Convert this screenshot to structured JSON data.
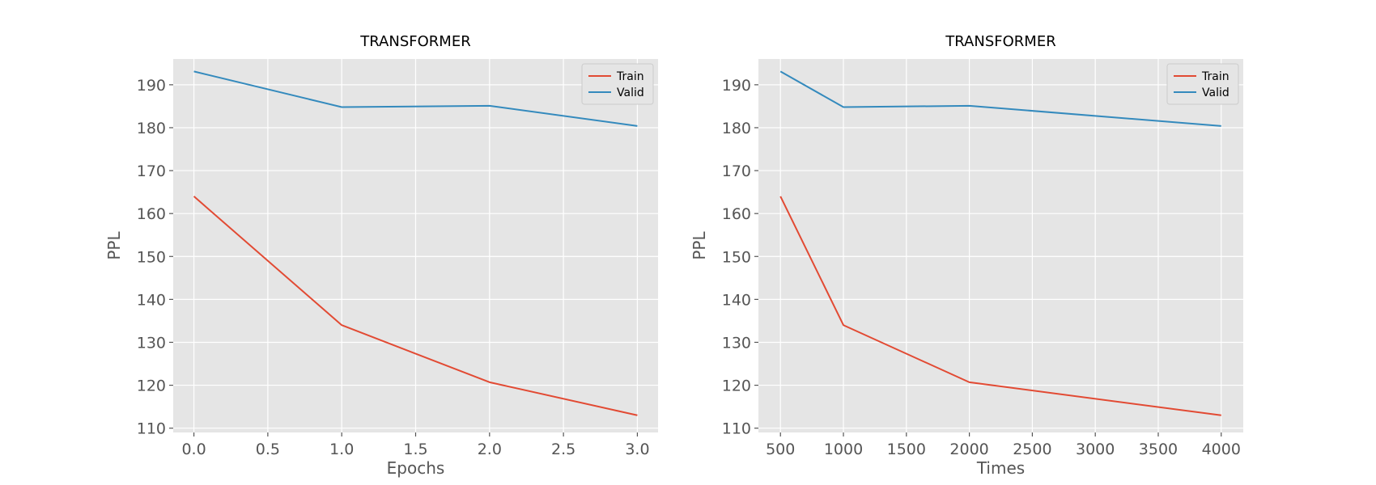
{
  "chart_data": [
    {
      "type": "line",
      "title": "TRANSFORMER",
      "xlabel": "Epochs",
      "ylabel": "PPL",
      "x": [
        0,
        1,
        2,
        3
      ],
      "xlim": [
        -0.14,
        3.14
      ],
      "ylim": [
        109,
        196
      ],
      "xticks": [
        0.0,
        0.5,
        1.0,
        1.5,
        2.0,
        2.5,
        3.0
      ],
      "xtick_labels": [
        "0.0",
        "0.5",
        "1.0",
        "1.5",
        "2.0",
        "2.5",
        "3.0"
      ],
      "yticks": [
        110,
        120,
        130,
        140,
        150,
        160,
        170,
        180,
        190
      ],
      "ytick_labels": [
        "110",
        "120",
        "130",
        "140",
        "150",
        "160",
        "170",
        "180",
        "190"
      ],
      "grid": true,
      "legend_position": "top-right",
      "series": [
        {
          "name": "Train",
          "color": "#e24a33",
          "values": [
            164.0,
            134.0,
            120.7,
            113.0
          ]
        },
        {
          "name": "Valid",
          "color": "#348abd",
          "values": [
            193.1,
            184.8,
            185.1,
            180.4
          ]
        }
      ]
    },
    {
      "type": "line",
      "title": "TRANSFORMER",
      "xlabel": "Times",
      "ylabel": "PPL",
      "x": [
        500,
        1000,
        2000,
        4000
      ],
      "xlim": [
        325,
        4175
      ],
      "ylim": [
        109,
        196
      ],
      "xticks": [
        500,
        1000,
        1500,
        2000,
        2500,
        3000,
        3500,
        4000
      ],
      "xtick_labels": [
        "500",
        "1000",
        "1500",
        "2000",
        "2500",
        "3000",
        "3500",
        "4000"
      ],
      "yticks": [
        110,
        120,
        130,
        140,
        150,
        160,
        170,
        180,
        190
      ],
      "ytick_labels": [
        "110",
        "120",
        "130",
        "140",
        "150",
        "160",
        "170",
        "180",
        "190"
      ],
      "grid": true,
      "legend_position": "top-right",
      "series": [
        {
          "name": "Train",
          "color": "#e24a33",
          "values": [
            164.0,
            134.0,
            120.7,
            113.0
          ]
        },
        {
          "name": "Valid",
          "color": "#348abd",
          "values": [
            193.1,
            184.8,
            185.1,
            180.4
          ]
        }
      ]
    }
  ]
}
